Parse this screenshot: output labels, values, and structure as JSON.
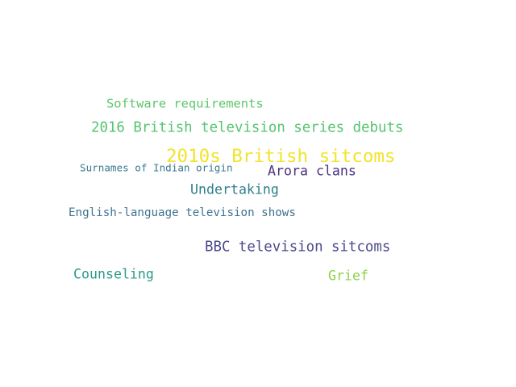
{
  "words": [
    {
      "text": "2010s British sitcoms",
      "color": "#f2e32a"
    },
    {
      "text": "2016 British television series debuts",
      "color": "#55c46f"
    },
    {
      "text": "BBC television sitcoms",
      "color": "#4a4a8e"
    },
    {
      "text": "English-language television shows",
      "color": "#3d7390"
    },
    {
      "text": "Software requirements",
      "color": "#5dc56a"
    },
    {
      "text": "Arora clans",
      "color": "#4b3580"
    },
    {
      "text": "Undertaking",
      "color": "#2e7f8d"
    },
    {
      "text": "Surnames of Indian origin",
      "color": "#3d7a90"
    },
    {
      "text": "Counseling",
      "color": "#2a9a8a"
    },
    {
      "text": "Grief",
      "color": "#8fd24a"
    }
  ]
}
